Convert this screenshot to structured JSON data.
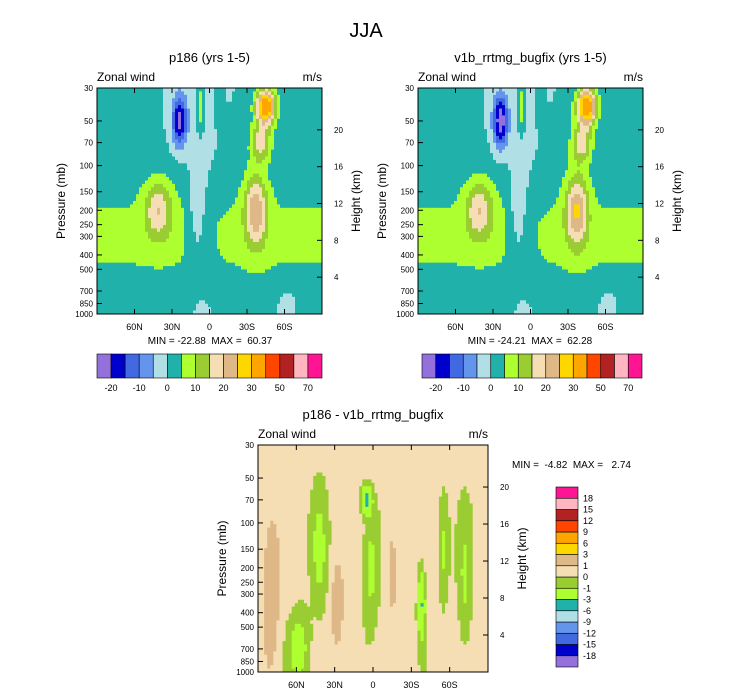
{
  "figure": {
    "title": "JJA"
  },
  "palettes": {
    "field": [
      "#9370DB",
      "#0000CD",
      "#4169E1",
      "#6495ED",
      "#B0E0E6",
      "#20B2AA",
      "#ADFF2F",
      "#9ACD32",
      "#F5DEB3",
      "#DEB887",
      "#FFD700",
      "#FFA500",
      "#FF4500",
      "#B22222",
      "#FFB6C1",
      "#FF1493"
    ],
    "diff": [
      "#9370DB",
      "#0000CD",
      "#4169E1",
      "#6495ED",
      "#B0E0E6",
      "#20B2AA",
      "#ADFF2F",
      "#9ACD32",
      "#F5DEB3",
      "#DEB887",
      "#FFD700",
      "#FFA500",
      "#FF4500",
      "#B22222",
      "#FFB6C1",
      "#FF1493"
    ]
  },
  "chart_data": [
    {
      "id": "p186",
      "type": "heatmap",
      "title": "p186 (yrs 1-5)",
      "left_label": "Zonal wind",
      "units": "m/s",
      "ylabel": "Pressure (mb)",
      "ylabel_right": "Height (km)",
      "x_ticks": [
        "60N",
        "30N",
        "0",
        "30S",
        "60S"
      ],
      "x_tick_lat": [
        60,
        30,
        0,
        -30,
        -60
      ],
      "xlim_lat": [
        90,
        -90
      ],
      "y_ticks": [
        "30",
        "50",
        "70",
        "100",
        "150",
        "200",
        "250",
        "300",
        "400",
        "500",
        "700",
        "850",
        "1000"
      ],
      "y_tick_p": [
        30,
        50,
        70,
        100,
        150,
        200,
        250,
        300,
        400,
        500,
        700,
        850,
        1000
      ],
      "ylim_p": [
        30,
        1000
      ],
      "height_ticks": [
        "20",
        "16",
        "12",
        "8",
        "4"
      ],
      "height_tick_km": [
        20,
        16,
        12,
        8,
        4
      ],
      "min_max_text": "MIN = -22.88  MAX =  60.37",
      "min": -22.88,
      "max": 60.37,
      "levels": [
        -20,
        -15,
        -10,
        -5,
        0,
        5,
        10,
        15,
        20,
        25,
        30,
        40,
        50,
        60,
        70
      ],
      "colorbar_labels": [
        "-20",
        "-10",
        "0",
        "10",
        "20",
        "30",
        "50",
        "70"
      ],
      "features": [
        {
          "lat": -37,
          "p": 200,
          "amp": 20,
          "slat": 9,
          "sz": 0.55
        },
        {
          "lat": -45,
          "p": 40,
          "amp": 36,
          "slat": 8,
          "sz": 0.28
        },
        {
          "lat": -41,
          "p": 70,
          "amp": 17,
          "slat": 8,
          "sz": 0.3
        },
        {
          "lat": 41,
          "p": 200,
          "amp": 15,
          "slat": 11,
          "sz": 0.45
        },
        {
          "lat": 24,
          "p": 50,
          "amp": -22,
          "slat": 6,
          "sz": 0.4
        },
        {
          "lat": 7,
          "p": 40,
          "amp": 10,
          "slat": 3,
          "sz": 0.4
        },
        {
          "lat": -8,
          "p": 40,
          "amp": 6,
          "slat": 3,
          "sz": 0.35
        },
        {
          "lat": 10,
          "p": 200,
          "amp": -6,
          "slat": 7,
          "sz": 0.8
        },
        {
          "lat": -62,
          "p": 850,
          "amp": -4,
          "slat": 8,
          "sz": 0.3
        }
      ]
    },
    {
      "id": "v1b",
      "type": "heatmap",
      "title": "v1b_rrtmg_bugfix (yrs 1-5)",
      "left_label": "Zonal wind",
      "units": "m/s",
      "ylabel": "Pressure (mb)",
      "ylabel_right": "Height (km)",
      "x_ticks": [
        "60N",
        "30N",
        "0",
        "30S",
        "60S"
      ],
      "x_tick_lat": [
        60,
        30,
        0,
        -30,
        -60
      ],
      "xlim_lat": [
        90,
        -90
      ],
      "y_ticks": [
        "30",
        "50",
        "70",
        "100",
        "150",
        "200",
        "250",
        "300",
        "400",
        "500",
        "700",
        "850",
        "1000"
      ],
      "y_tick_p": [
        30,
        50,
        70,
        100,
        150,
        200,
        250,
        300,
        400,
        500,
        700,
        850,
        1000
      ],
      "ylim_p": [
        30,
        1000
      ],
      "height_ticks": [
        "20",
        "16",
        "12",
        "8",
        "4"
      ],
      "height_tick_km": [
        20,
        16,
        12,
        8,
        4
      ],
      "min_max_text": "MIN = -24.21  MAX =  62.28",
      "min": -24.21,
      "max": 62.28,
      "levels": [
        -20,
        -15,
        -10,
        -5,
        0,
        5,
        10,
        15,
        20,
        25,
        30,
        40,
        50,
        60,
        70
      ],
      "colorbar_labels": [
        "-20",
        "-10",
        "0",
        "10",
        "20",
        "30",
        "50",
        "70"
      ],
      "features": [
        {
          "lat": -37,
          "p": 200,
          "amp": 21,
          "slat": 9,
          "sz": 0.55
        },
        {
          "lat": -45,
          "p": 40,
          "amp": 38,
          "slat": 8,
          "sz": 0.28
        },
        {
          "lat": -41,
          "p": 70,
          "amp": 18,
          "slat": 8,
          "sz": 0.3
        },
        {
          "lat": 41,
          "p": 200,
          "amp": 15,
          "slat": 11,
          "sz": 0.45
        },
        {
          "lat": 24,
          "p": 50,
          "amp": -24,
          "slat": 6,
          "sz": 0.4
        },
        {
          "lat": 7,
          "p": 40,
          "amp": 10,
          "slat": 3,
          "sz": 0.4
        },
        {
          "lat": -8,
          "p": 40,
          "amp": 6,
          "slat": 3,
          "sz": 0.35
        },
        {
          "lat": 10,
          "p": 200,
          "amp": -6,
          "slat": 7,
          "sz": 0.8
        },
        {
          "lat": -62,
          "p": 850,
          "amp": -4,
          "slat": 8,
          "sz": 0.3
        }
      ]
    },
    {
      "id": "diff",
      "type": "heatmap",
      "title": "p186 - v1b_rrtmg_bugfix",
      "left_label": "Zonal wind",
      "units": "m/s",
      "ylabel": "Pressure (mb)",
      "ylabel_right": "Height (km)",
      "x_ticks": [
        "60N",
        "30N",
        "0",
        "30S",
        "60S"
      ],
      "x_tick_lat": [
        60,
        30,
        0,
        -30,
        -60
      ],
      "xlim_lat": [
        90,
        -90
      ],
      "y_ticks": [
        "30",
        "50",
        "70",
        "100",
        "150",
        "200",
        "250",
        "300",
        "400",
        "500",
        "700",
        "850",
        "1000"
      ],
      "y_tick_p": [
        30,
        50,
        70,
        100,
        150,
        200,
        250,
        300,
        400,
        500,
        700,
        850,
        1000
      ],
      "ylim_p": [
        30,
        1000
      ],
      "height_ticks": [
        "20",
        "16",
        "12",
        "8",
        "4"
      ],
      "height_tick_km": [
        20,
        16,
        12,
        8,
        4
      ],
      "min_max_text": "MIN =  -4.82  MAX =   2.74",
      "min": -4.82,
      "max": 2.74,
      "levels": [
        -18,
        -15,
        -12,
        -9,
        -6,
        -3,
        -1,
        0,
        1,
        3,
        6,
        9,
        12,
        15,
        18
      ],
      "colorbar_labels": [
        "-18",
        "-15",
        "-12",
        "-9",
        "-6",
        "-3",
        "-1",
        "0",
        "1",
        "3",
        "6",
        "9",
        "12",
        "15",
        "18"
      ],
      "features": [
        {
          "lat": 80,
          "p": 350,
          "amp": 1.8,
          "slat": 6,
          "sz": 1.1
        },
        {
          "lat": 58,
          "p": 700,
          "amp": -2.2,
          "slat": 8,
          "sz": 0.55
        },
        {
          "lat": 42,
          "p": 150,
          "amp": -1.6,
          "slat": 6,
          "sz": 0.9
        },
        {
          "lat": 28,
          "p": 350,
          "amp": 1.4,
          "slat": 5,
          "sz": 0.7
        },
        {
          "lat": 5,
          "p": 70,
          "amp": -4.5,
          "slat": 4,
          "sz": 0.2
        },
        {
          "lat": 2,
          "p": 200,
          "amp": -1.8,
          "slat": 6,
          "sz": 0.9
        },
        {
          "lat": -15,
          "p": 200,
          "amp": 1.3,
          "slat": 5,
          "sz": 0.8
        },
        {
          "lat": -38,
          "p": 350,
          "amp": -3.5,
          "slat": 3,
          "sz": 0.55
        },
        {
          "lat": -55,
          "p": 150,
          "amp": -1.6,
          "slat": 4,
          "sz": 0.8
        },
        {
          "lat": -72,
          "p": 250,
          "amp": -1.4,
          "slat": 5,
          "sz": 1.0
        }
      ]
    }
  ]
}
